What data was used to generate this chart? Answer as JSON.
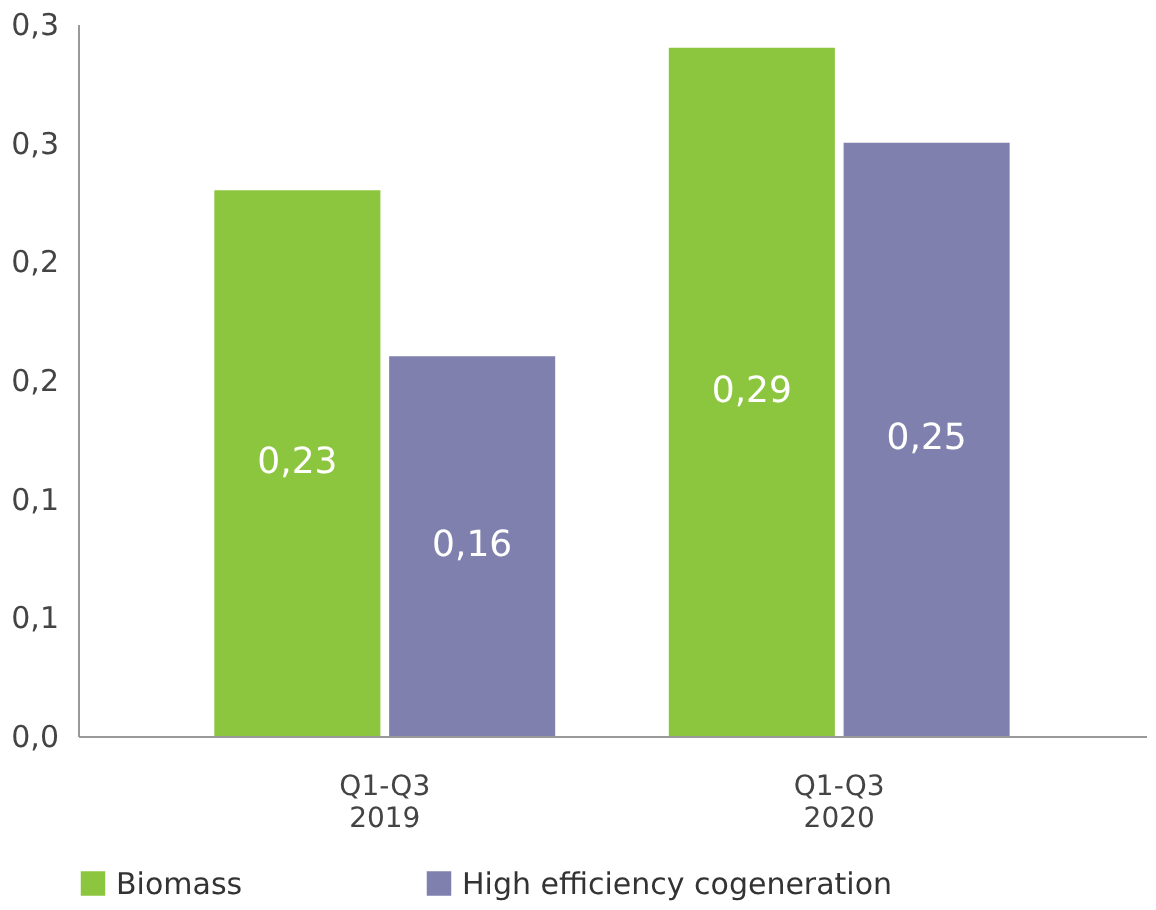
{
  "chart_data": {
    "type": "bar",
    "categories": [
      "Q1-Q3 2019",
      "Q1-Q3 2020"
    ],
    "series": [
      {
        "name": "Biomass",
        "color": "#8cc63e",
        "values": [
          0.23,
          0.29
        ],
        "value_labels": [
          "0,23",
          "0,29"
        ]
      },
      {
        "name": "High efficiency cogeneration",
        "color": "#7f80ad",
        "values": [
          0.16,
          0.25
        ],
        "value_labels": [
          "0,16",
          "0,25"
        ]
      }
    ],
    "ylim": [
      0,
      0.3
    ],
    "yticks": [
      {
        "value": 0,
        "label": "0,0"
      },
      {
        "value": 0.05,
        "label": "0,1"
      },
      {
        "value": 0.1,
        "label": "0,1"
      },
      {
        "value": 0.15,
        "label": "0,2"
      },
      {
        "value": 0.2,
        "label": "0,2"
      },
      {
        "value": 0.25,
        "label": "0,3"
      },
      {
        "value": 0.3,
        "label": "0,3"
      }
    ],
    "grid": false,
    "legend": "bottom"
  }
}
